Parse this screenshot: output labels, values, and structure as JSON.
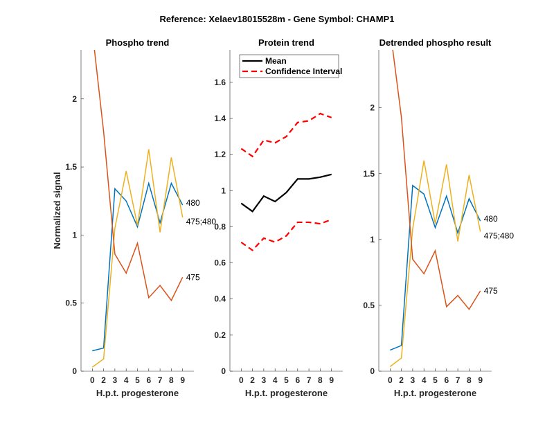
{
  "figure_title": "Reference:  Xelaev18015528m - Gene Symbol:  CHAMP1",
  "colors": {
    "480": "#0072BD",
    "475": "#D95319",
    "475;480": "#EDB120",
    "mean": "#000000",
    "ci": "#FF0000"
  },
  "chart_data": [
    {
      "type": "line",
      "title": "Phospho trend",
      "xlabel": "H.p.t. progesterone",
      "ylabel": "Normalized signal",
      "categories": [
        "0",
        "2",
        "3",
        "4",
        "5",
        "6",
        "7",
        "8",
        "9"
      ],
      "ylim": [
        0,
        2.36
      ],
      "yticks": [
        0,
        0.5,
        1,
        1.5,
        2
      ],
      "ytick_labels": [
        "0",
        "0.5",
        "1",
        "1.5",
        "2"
      ],
      "grid": false,
      "series": [
        {
          "name": "480",
          "color_key": "480",
          "values": [
            0.15,
            0.17,
            1.34,
            1.25,
            1.06,
            1.38,
            1.09,
            1.38,
            1.22
          ]
        },
        {
          "name": "475;480",
          "color_key": "475;480",
          "values": [
            0.03,
            0.09,
            1.05,
            1.47,
            1.07,
            1.63,
            1.02,
            1.57,
            1.13
          ]
        },
        {
          "name": "475",
          "color_key": "475",
          "values": [
            2.5,
            1.76,
            0.86,
            0.72,
            0.94,
            0.54,
            0.63,
            0.52,
            0.69
          ]
        }
      ]
    },
    {
      "type": "line",
      "title": "Protein trend",
      "xlabel": "H.p.t. progesterone",
      "ylabel": "",
      "categories": [
        "0",
        "2",
        "3",
        "4",
        "5",
        "6",
        "7",
        "8",
        "9"
      ],
      "ylim": [
        0,
        1.78
      ],
      "yticks": [
        0,
        0.2,
        0.4,
        0.6,
        0.8,
        1,
        1.2,
        1.4,
        1.6
      ],
      "ytick_labels": [
        "0",
        "0.2",
        "0.4",
        "0.6",
        "0.8",
        "1",
        "1.2",
        "1.4",
        "1.6"
      ],
      "grid": false,
      "legend": {
        "position": "top-left",
        "entries": [
          "Mean",
          "Confidence Interval"
        ]
      },
      "series": [
        {
          "name": "Mean",
          "color_key": "mean",
          "style": "solid",
          "values": [
            0.93,
            0.885,
            0.97,
            0.94,
            0.99,
            1.065,
            1.065,
            1.075,
            1.09
          ]
        },
        {
          "name": "Confidence Interval",
          "color_key": "ci",
          "style": "dashed",
          "values": [
            1.233,
            1.19,
            1.28,
            1.265,
            1.3,
            1.378,
            1.387,
            1.427,
            1.405
          ]
        },
        {
          "name": "Confidence Interval",
          "color_key": "ci",
          "style": "dashed",
          "values": [
            0.714,
            0.67,
            0.737,
            0.715,
            0.75,
            0.825,
            0.825,
            0.817,
            0.84
          ]
        }
      ]
    },
    {
      "type": "line",
      "title": "Detrended phospho result",
      "xlabel": "H.p.t. progesterone",
      "ylabel": "",
      "categories": [
        "0",
        "2",
        "3",
        "4",
        "5",
        "6",
        "7",
        "8",
        "9"
      ],
      "ylim": [
        0,
        2.44
      ],
      "yticks": [
        0,
        0.5,
        1,
        1.5,
        2
      ],
      "ytick_labels": [
        "0",
        "0.5",
        "1",
        "1.5",
        "2"
      ],
      "grid": false,
      "series": [
        {
          "name": "480",
          "color_key": "480",
          "values": [
            0.16,
            0.195,
            1.41,
            1.345,
            1.09,
            1.33,
            1.05,
            1.31,
            1.14
          ]
        },
        {
          "name": "475;480",
          "color_key": "475;480",
          "values": [
            0.035,
            0.1,
            1.08,
            1.6,
            1.12,
            1.57,
            0.985,
            1.49,
            1.06
          ]
        },
        {
          "name": "475",
          "color_key": "475",
          "values": [
            2.6,
            1.93,
            0.85,
            0.74,
            0.915,
            0.49,
            0.575,
            0.47,
            0.61
          ]
        }
      ]
    }
  ]
}
